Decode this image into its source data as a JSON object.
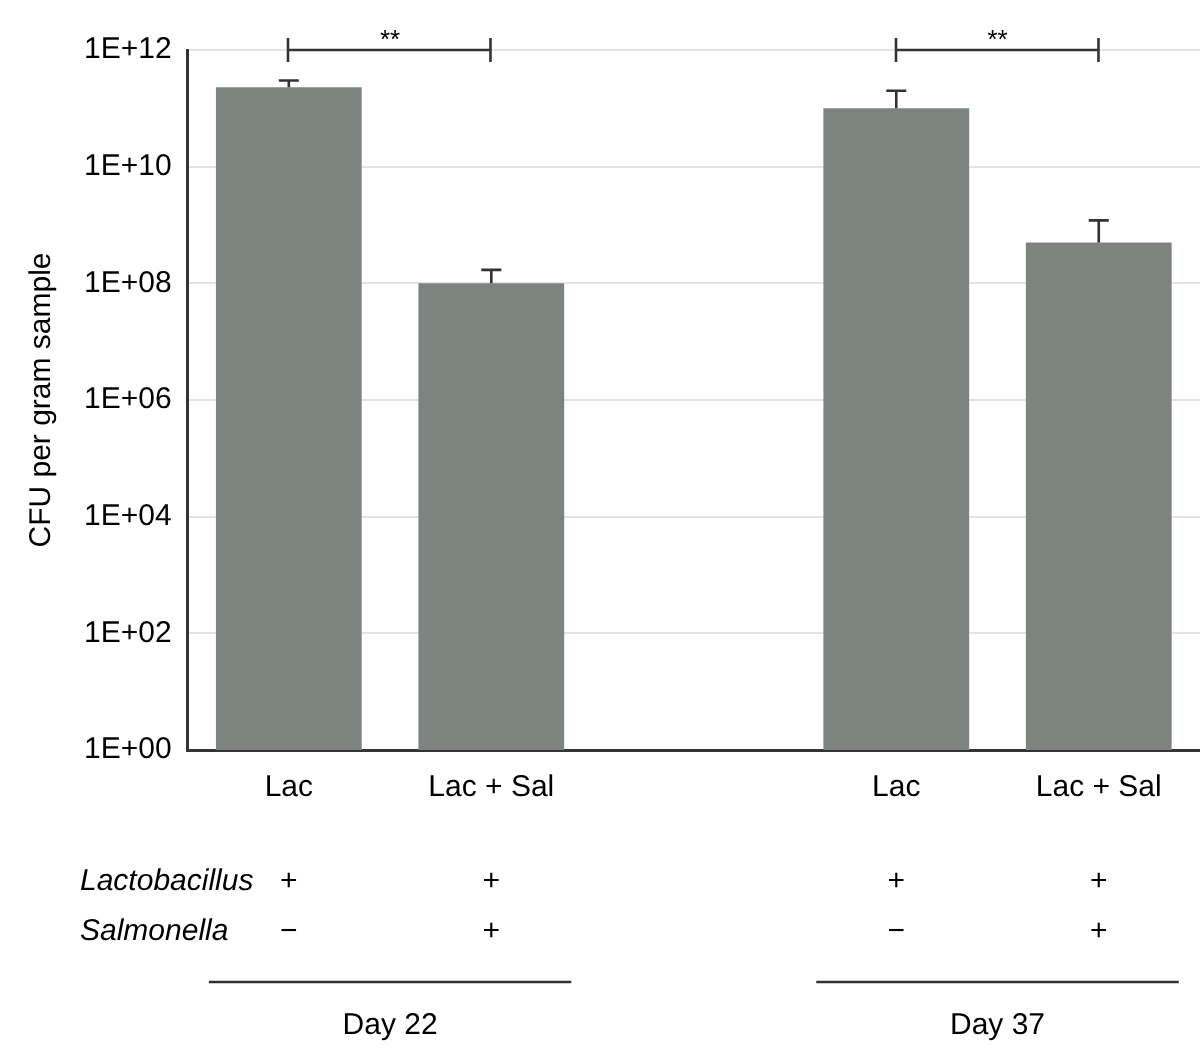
{
  "chart_data": {
    "type": "bar",
    "ylabel": "CFU per gram sample",
    "categories": [
      "Lac",
      "Lac + Sal",
      null,
      "Lac",
      "Lac + Sal"
    ],
    "values": [
      230000000000,
      100000000,
      null,
      100000000000,
      500000000
    ],
    "errors": [
      [
        230000000000,
        300000000000
      ],
      [
        100000000,
        170000000
      ],
      null,
      [
        100000000000,
        200000000000
      ],
      [
        500000000,
        1200000000
      ]
    ],
    "color": "#7d8480",
    "log": "y",
    "ylim": [
      1,
      1000000000000
    ],
    "yticks": [
      {
        "value": 1,
        "label": "1E+00"
      },
      {
        "value": 100,
        "label": "1E+02"
      },
      {
        "value": 10000,
        "label": "1E+04"
      },
      {
        "value": 1000000,
        "label": "1E+06"
      },
      {
        "value": 100000000,
        "label": "1E+08"
      },
      {
        "value": 10000000000,
        "label": "1E+10"
      },
      {
        "value": 1000000000000,
        "label": "1E+12"
      }
    ],
    "grid": "y",
    "legend": false,
    "annotations": [
      "**",
      "**",
      "Lactobacillus",
      "+",
      "+",
      "+",
      "+",
      "Salmonella",
      "−",
      "+",
      "−",
      "+",
      "Day 22",
      "Day 37"
    ]
  }
}
